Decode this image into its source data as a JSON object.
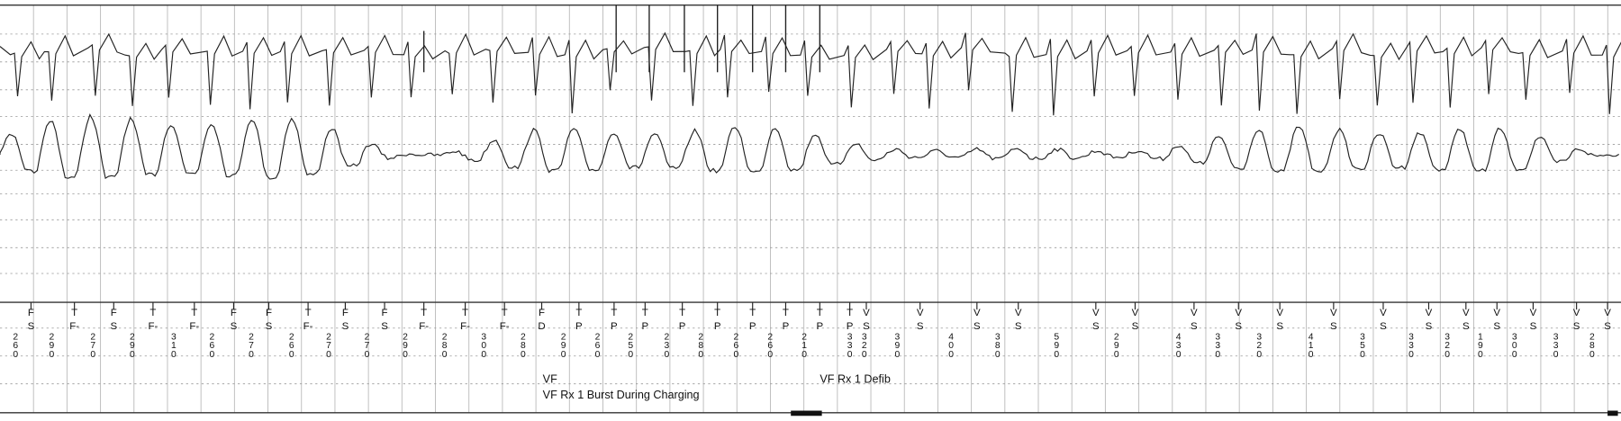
{
  "strip": {
    "markers": [
      {
        "top": "F",
        "bottom": "S"
      },
      {
        "top": "T",
        "bottom": "F-"
      },
      {
        "top": "F",
        "bottom": "S"
      },
      {
        "top": "T",
        "bottom": "F-"
      },
      {
        "top": "T",
        "bottom": "F-"
      },
      {
        "top": "F",
        "bottom": "S"
      },
      {
        "top": "F",
        "bottom": "S"
      },
      {
        "top": "T",
        "bottom": "F-"
      },
      {
        "top": "F",
        "bottom": "S"
      },
      {
        "top": "F",
        "bottom": "S"
      },
      {
        "top": "T",
        "bottom": "F-"
      },
      {
        "top": "T",
        "bottom": "F-"
      },
      {
        "top": "T",
        "bottom": "F-"
      },
      {
        "top": "F",
        "bottom": "D"
      },
      {
        "top": "T",
        "bottom": "P"
      },
      {
        "top": "T",
        "bottom": "P"
      },
      {
        "top": "T",
        "bottom": "P"
      },
      {
        "top": "T",
        "bottom": "P"
      },
      {
        "top": "T",
        "bottom": "P"
      },
      {
        "top": "T",
        "bottom": "P"
      },
      {
        "top": "T",
        "bottom": "P"
      },
      {
        "top": "T",
        "bottom": "P"
      },
      {
        "top": "T",
        "bottom": "P"
      },
      {
        "top": "V",
        "bottom": "S"
      },
      {
        "top": "V",
        "bottom": "S"
      },
      {
        "top": "V",
        "bottom": "S"
      },
      {
        "top": "V",
        "bottom": "S"
      },
      {
        "top": "V",
        "bottom": "S"
      },
      {
        "top": "V",
        "bottom": "S"
      },
      {
        "top": "V",
        "bottom": "S"
      },
      {
        "top": "V",
        "bottom": "S"
      },
      {
        "top": "V",
        "bottom": "S"
      },
      {
        "top": "V",
        "bottom": "S"
      },
      {
        "top": "V",
        "bottom": "S"
      },
      {
        "top": "V",
        "bottom": "S"
      },
      {
        "top": "V",
        "bottom": "S"
      },
      {
        "top": "V",
        "bottom": "S"
      },
      {
        "top": "V",
        "bottom": "S"
      },
      {
        "top": "V",
        "bottom": "S"
      },
      {
        "top": "V",
        "bottom": "S"
      }
    ],
    "intervals": [
      260,
      290,
      270,
      290,
      310,
      260,
      270,
      260,
      270,
      270,
      290,
      280,
      300,
      280,
      290,
      260,
      250,
      230,
      280,
      260,
      260,
      210,
      330,
      320,
      390,
      400,
      380,
      590,
      290,
      430,
      330,
      320,
      410,
      350,
      330,
      320,
      190,
      300,
      330,
      280
    ],
    "annotations": {
      "vf": "VF",
      "burst": "VF Rx 1 Burst During Charging",
      "defib": "VF Rx 1 Defib"
    }
  }
}
